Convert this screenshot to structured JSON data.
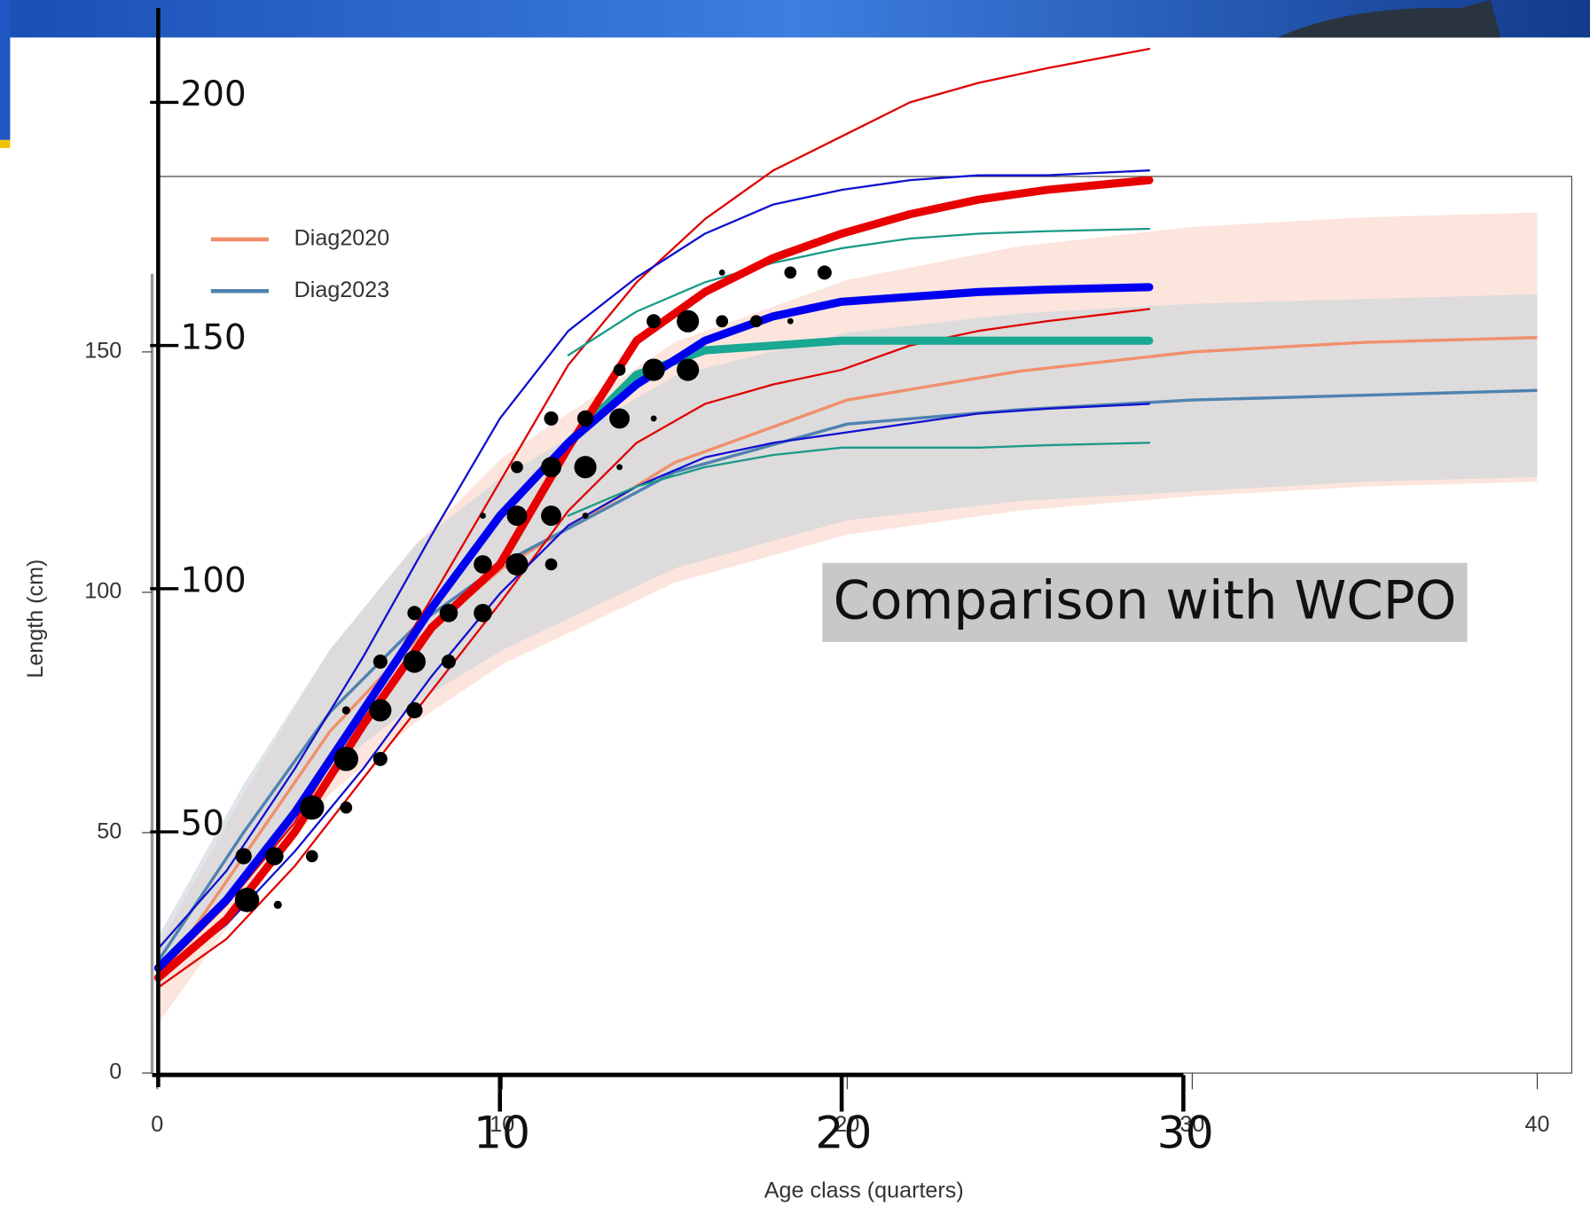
{
  "chart_data": [
    {
      "type": "line",
      "xlabel": "Age class (quarters)",
      "ylabel": "Length (cm)",
      "xlim": [
        0,
        41
      ],
      "ylim": [
        0,
        186.5
      ],
      "xticks": [
        0,
        10,
        20,
        30,
        40
      ],
      "yticks": [
        0,
        50,
        100,
        150
      ],
      "legend": "upper left",
      "x": [
        0,
        2.5,
        5,
        7.5,
        10,
        15,
        20,
        25,
        30,
        35,
        40
      ],
      "series": [
        {
          "name": "Diag2020",
          "color": "#f0906c",
          "band_color": "#f9d3c4",
          "values": [
            19,
            45,
            71,
            90,
            105,
            127,
            140,
            146,
            150,
            152,
            153
          ],
          "upper": [
            26,
            58,
            88,
            110,
            128,
            152,
            165,
            172,
            176,
            178,
            179
          ],
          "lower": [
            10,
            35,
            58,
            73,
            85,
            102,
            112,
            117,
            120,
            122,
            123
          ]
        },
        {
          "name": "Diag2023",
          "color": "#4f82b0",
          "band_color": "#c9d3dc",
          "values": [
            23,
            50,
            75,
            93,
            106,
            125,
            135,
            138,
            140,
            141,
            142
          ],
          "upper": [
            28,
            60,
            88,
            110,
            124,
            145,
            154,
            158,
            160,
            161,
            162
          ],
          "lower": [
            17,
            42,
            63,
            77,
            88,
            105,
            115,
            119,
            121,
            123,
            124
          ]
        }
      ]
    },
    {
      "type": "line",
      "annotation": "Comparison with WCPO",
      "xlim": [
        0,
        30
      ],
      "ylim": [
        0,
        220
      ],
      "xticks": [
        10,
        20,
        30
      ],
      "yticks": [
        50,
        100,
        150,
        200
      ],
      "x": [
        0,
        2,
        4,
        6,
        8,
        10,
        12,
        14,
        16,
        18,
        20,
        22,
        24,
        26,
        29
      ],
      "series": [
        {
          "color": "#e00000",
          "width": 2,
          "values": [
            21,
            35,
            52,
            75,
            98,
            122,
            146,
            163,
            176,
            186,
            193,
            200,
            204,
            207,
            211
          ]
        },
        {
          "color": "#e00000",
          "width": 2,
          "values": [
            18,
            28,
            43,
            61,
            79,
            97,
            116,
            130,
            138,
            142,
            145,
            150,
            153,
            155,
            157.5
          ]
        },
        {
          "color": "#1010d0",
          "width": 2,
          "values": [
            26,
            42,
            63,
            86,
            111,
            135,
            153,
            164,
            173,
            179,
            182,
            184,
            185,
            185,
            186
          ]
        },
        {
          "color": "#1010d0",
          "width": 2,
          "values": [
            20,
            31,
            46,
            63,
            82,
            99,
            113,
            121,
            127,
            130,
            132,
            134,
            136,
            137,
            138
          ]
        },
        {
          "color": "#1a9a8a",
          "width": 2,
          "values": [
            null,
            null,
            null,
            null,
            null,
            null,
            148,
            157,
            163,
            167,
            170,
            172,
            173,
            173.5,
            174
          ]
        },
        {
          "color": "#1a9a8a",
          "width": 2,
          "values": [
            null,
            null,
            null,
            null,
            null,
            null,
            115,
            121,
            125,
            127.5,
            129,
            129,
            129,
            129.5,
            130
          ]
        },
        {
          "color": "#18a894",
          "width": 8,
          "values": [
            null,
            null,
            null,
            null,
            null,
            null,
            130,
            144,
            149,
            150,
            151,
            151,
            151,
            151,
            151
          ]
        },
        {
          "color": "#e80000",
          "width": 8,
          "values": [
            20,
            32,
            50,
            72,
            92,
            105,
            129,
            151,
            161,
            168,
            173,
            177,
            180,
            182,
            184
          ]
        },
        {
          "color": "#0000f0",
          "width": 8,
          "values": [
            22,
            36,
            54,
            75,
            96,
            115,
            130,
            142,
            151,
            156,
            159,
            160,
            161,
            161.5,
            162
          ]
        }
      ],
      "bubbles": {
        "color": "#000000",
        "x": [
          2.5,
          2.6,
          3.4,
          3.5,
          4.5,
          4.5,
          5.5,
          5.5,
          5.5,
          6.5,
          6.5,
          6.5,
          7.5,
          7.5,
          7.5,
          8.5,
          8.5,
          9.5,
          9.5,
          9.5,
          10.5,
          10.5,
          10.5,
          11.5,
          11.5,
          11.5,
          11.5,
          12.5,
          12.5,
          12.5,
          13.5,
          13.5,
          13.5,
          14.5,
          14.5,
          14.5,
          15.5,
          15.5,
          16.5,
          16.5,
          17.5,
          18.5,
          18.5,
          19.5
        ],
        "y": [
          45,
          36,
          45,
          35,
          55,
          45,
          75,
          65,
          55,
          85,
          75,
          65,
          95,
          85,
          75,
          95,
          85,
          115,
          105,
          95,
          125,
          115,
          105,
          135,
          125,
          115,
          105,
          135,
          125,
          115,
          145,
          135,
          125,
          155,
          145,
          135,
          155,
          145,
          165,
          155,
          155,
          165,
          155,
          165
        ],
        "sizes": [
          8,
          12,
          9,
          4,
          12,
          6,
          4,
          12,
          6,
          7,
          11,
          7,
          7,
          11,
          8,
          9,
          7,
          3,
          9,
          9,
          6,
          10,
          11,
          7,
          10,
          10,
          6,
          8,
          11,
          3,
          6,
          10,
          3,
          7,
          11,
          3,
          11,
          11,
          3,
          6,
          6,
          6,
          3,
          7
        ]
      }
    }
  ]
}
